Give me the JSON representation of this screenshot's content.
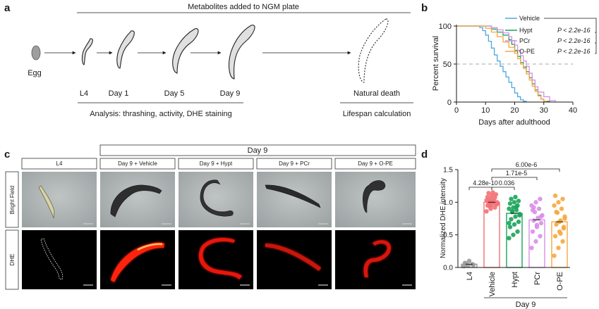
{
  "panel_labels": {
    "a": "a",
    "b": "b",
    "c": "c",
    "d": "d"
  },
  "panel_a": {
    "top_label": "Metabolites added to NGM plate",
    "egg_label": "Egg",
    "stage_labels": [
      "L4",
      "Day 1",
      "Day 5",
      "Day 9"
    ],
    "death_label": "Natural death",
    "analysis_label": "Analysis: thrashing, activity, DHE staining",
    "lifespan_label": "Lifespan calculation"
  },
  "panel_c": {
    "day9_header": "Day 9",
    "columns": [
      "L4",
      "Day 9 + Vehicle",
      "Day 9 + Hypt",
      "Day 9  + PCr",
      "Day 9 + O-PE"
    ],
    "rows": [
      "Bright Field",
      "DHE"
    ]
  },
  "colors": {
    "vehicle": "#4fa8e0",
    "hypt": "#1aa35a",
    "pcr": "#d98ee8",
    "ope": "#f5a841",
    "l4": "#9a9a9a",
    "dhe_red": "#ff2a10"
  },
  "chart_data": [
    {
      "type": "line",
      "subtype": "kaplan-meier survival",
      "xlabel": "Days after adulthood",
      "ylabel": "Percent survival",
      "xlim": [
        0,
        40
      ],
      "ylim": [
        0,
        100
      ],
      "xticks": [
        "0",
        "10",
        "20",
        "30",
        "40"
      ],
      "yticks": [
        "0",
        "50",
        "100"
      ],
      "reference_line_y": 50,
      "legend_position": "top-right",
      "series": [
        {
          "name": "Vehicle",
          "pvalue": "",
          "x": [
            0,
            6,
            8,
            9,
            10,
            11,
            12,
            13,
            14,
            15,
            16,
            17,
            18,
            19,
            20,
            21,
            22,
            23,
            24
          ],
          "y": [
            100,
            100,
            98,
            94,
            88,
            80,
            71,
            62,
            54,
            47,
            40,
            33,
            26,
            19,
            12,
            7,
            3,
            1,
            0
          ]
        },
        {
          "name": "Hypt",
          "pvalue": "P < 2.2e-16",
          "x": [
            0,
            8,
            12,
            14,
            16,
            18,
            19,
            20,
            21,
            22,
            23,
            24,
            25,
            26,
            27,
            28,
            29,
            30,
            32
          ],
          "y": [
            100,
            100,
            96,
            92,
            88,
            82,
            76,
            68,
            60,
            52,
            46,
            40,
            32,
            24,
            16,
            9,
            4,
            1,
            0
          ]
        },
        {
          "name": "PCr",
          "pvalue": "P < 2.2e-16",
          "x": [
            0,
            9,
            12,
            14,
            16,
            18,
            19,
            20,
            21,
            22,
            23,
            24,
            25,
            26,
            27,
            28,
            30,
            32,
            34
          ],
          "y": [
            100,
            100,
            98,
            95,
            91,
            86,
            81,
            75,
            68,
            61,
            54,
            47,
            38,
            29,
            20,
            13,
            7,
            2,
            0
          ]
        },
        {
          "name": "O-PE",
          "pvalue": "P < 2.2e-16",
          "x": [
            0,
            7,
            10,
            12,
            14,
            16,
            18,
            20,
            21,
            22,
            23,
            24,
            25,
            26,
            27,
            28,
            29,
            30,
            31
          ],
          "y": [
            100,
            100,
            97,
            92,
            86,
            79,
            72,
            64,
            57,
            50,
            44,
            37,
            29,
            21,
            14,
            8,
            4,
            1,
            0
          ]
        }
      ]
    },
    {
      "type": "bar",
      "subtype": "bar with individual points",
      "ylabel": "Normalized DHE intensity",
      "ylim": [
        0,
        1.5
      ],
      "yticks": [
        "0.0",
        "0.5",
        "1.0",
        "1.5"
      ],
      "categories": [
        "L4",
        "Vehicle",
        "Hypt",
        "PCr",
        "O-PE"
      ],
      "group_label": "Day 9",
      "values": [
        0.05,
        1.0,
        0.83,
        0.73,
        0.7
      ],
      "points": [
        [
          0.02,
          0.03,
          0.05,
          0.07,
          0.1,
          0.04,
          0.06
        ],
        [
          0.86,
          0.9,
          0.92,
          0.95,
          0.96,
          0.98,
          0.99,
          1.0,
          1.0,
          1.01,
          1.02,
          1.03,
          1.05,
          1.07,
          1.08,
          1.1,
          1.12,
          1.14,
          1.15,
          0.97,
          0.94
        ],
        [
          0.45,
          0.5,
          0.55,
          0.62,
          0.66,
          0.7,
          0.74,
          0.78,
          0.82,
          0.85,
          0.88,
          0.9,
          0.92,
          0.95,
          0.98,
          1.0,
          1.02,
          1.05,
          1.08,
          0.8,
          0.86,
          0.93,
          0.68
        ],
        [
          0.3,
          0.4,
          0.48,
          0.55,
          0.62,
          0.68,
          0.72,
          0.76,
          0.8,
          0.85,
          0.9,
          0.95,
          1.0,
          1.05,
          0.88,
          0.65,
          0.78,
          0.92
        ],
        [
          0.18,
          0.3,
          0.4,
          0.48,
          0.55,
          0.6,
          0.66,
          0.72,
          0.78,
          0.84,
          0.9,
          0.95,
          1.0,
          1.05,
          1.1,
          0.7,
          0.62,
          0.85,
          0.52,
          0.75
        ]
      ],
      "comparisons": [
        {
          "label": "4.28e-10",
          "from": "L4",
          "to": "Vehicle"
        },
        {
          "label": "0.036",
          "from": "Vehicle",
          "to": "Hypt"
        },
        {
          "label": "1.71e-5",
          "from": "Vehicle",
          "to": "PCr"
        },
        {
          "label": "6.00e-6",
          "from": "Vehicle",
          "to": "O-PE"
        }
      ]
    }
  ]
}
